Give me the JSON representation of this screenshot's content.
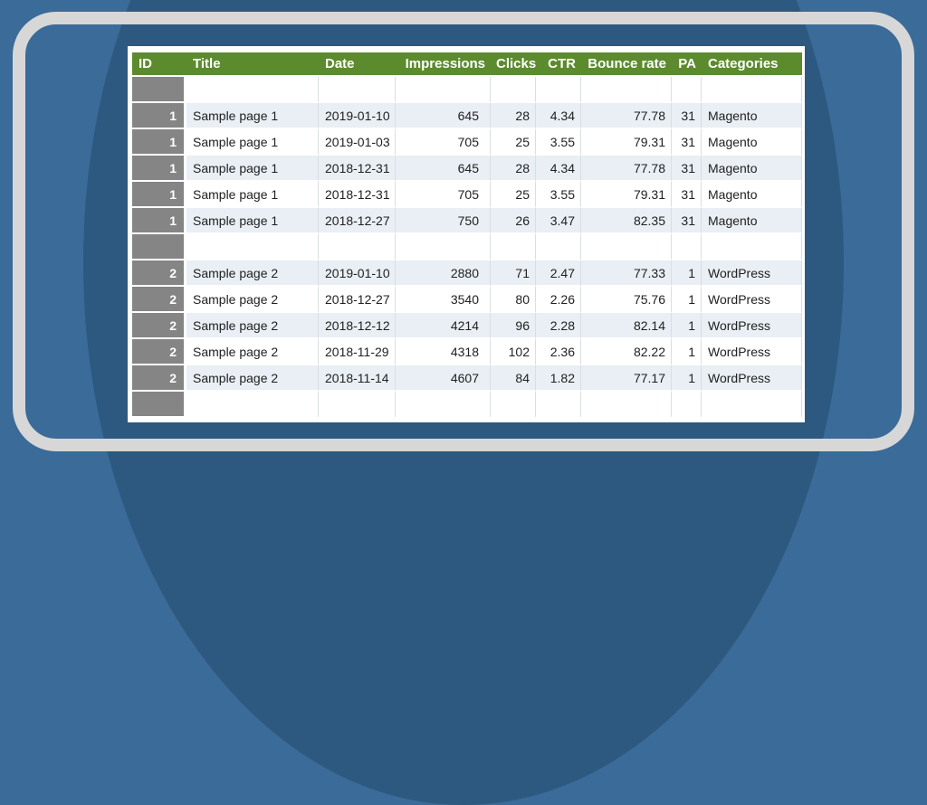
{
  "colors": {
    "background": "#3a6b99",
    "background_ellipse": "#2d5980",
    "frame_border": "#d7d7d7",
    "header_bg": "#5c8b2e",
    "header_text": "#ffffff",
    "id_cell_bg": "#858585",
    "id_cell_text": "#ffffff",
    "row_bg": "#ffffff",
    "row_alt_bg": "#e9eff4",
    "gridline": "#d9dee3",
    "body_text": "#212121"
  },
  "chart_data": {
    "type": "table",
    "columns": [
      {
        "key": "id",
        "label": "ID"
      },
      {
        "key": "title",
        "label": "Title"
      },
      {
        "key": "date",
        "label": "Date"
      },
      {
        "key": "impressions",
        "label": "Impressions"
      },
      {
        "key": "clicks",
        "label": "Clicks"
      },
      {
        "key": "ctr",
        "label": "CTR"
      },
      {
        "key": "bounce_rate",
        "label": "Bounce rate"
      },
      {
        "key": "pa",
        "label": "PA"
      },
      {
        "key": "categories",
        "label": "Categories"
      }
    ],
    "rows": [
      {
        "type": "spacer"
      },
      {
        "type": "data",
        "id": "1",
        "title": "Sample page 1",
        "date": "2019-01-10",
        "impressions": "645",
        "clicks": "28",
        "ctr": "4.34",
        "bounce_rate": "77.78",
        "pa": "31",
        "categories": "Magento"
      },
      {
        "type": "data",
        "id": "1",
        "title": "Sample page 1",
        "date": "2019-01-03",
        "impressions": "705",
        "clicks": "25",
        "ctr": "3.55",
        "bounce_rate": "79.31",
        "pa": "31",
        "categories": "Magento"
      },
      {
        "type": "data",
        "id": "1",
        "title": "Sample page 1",
        "date": "2018-12-31",
        "impressions": "645",
        "clicks": "28",
        "ctr": "4.34",
        "bounce_rate": "77.78",
        "pa": "31",
        "categories": "Magento"
      },
      {
        "type": "data",
        "id": "1",
        "title": "Sample page 1",
        "date": "2018-12-31",
        "impressions": "705",
        "clicks": "25",
        "ctr": "3.55",
        "bounce_rate": "79.31",
        "pa": "31",
        "categories": "Magento"
      },
      {
        "type": "data",
        "id": "1",
        "title": "Sample page 1",
        "date": "2018-12-27",
        "impressions": "750",
        "clicks": "26",
        "ctr": "3.47",
        "bounce_rate": "82.35",
        "pa": "31",
        "categories": "Magento"
      },
      {
        "type": "spacer"
      },
      {
        "type": "data",
        "id": "2",
        "title": "Sample page 2",
        "date": "2019-01-10",
        "impressions": "2880",
        "clicks": "71",
        "ctr": "2.47",
        "bounce_rate": "77.33",
        "pa": "1",
        "categories": "WordPress"
      },
      {
        "type": "data",
        "id": "2",
        "title": "Sample page 2",
        "date": "2018-12-27",
        "impressions": "3540",
        "clicks": "80",
        "ctr": "2.26",
        "bounce_rate": "75.76",
        "pa": "1",
        "categories": "WordPress"
      },
      {
        "type": "data",
        "id": "2",
        "title": "Sample page 2",
        "date": "2018-12-12",
        "impressions": "4214",
        "clicks": "96",
        "ctr": "2.28",
        "bounce_rate": "82.14",
        "pa": "1",
        "categories": "WordPress"
      },
      {
        "type": "data",
        "id": "2",
        "title": "Sample page 2",
        "date": "2018-11-29",
        "impressions": "4318",
        "clicks": "102",
        "ctr": "2.36",
        "bounce_rate": "82.22",
        "pa": "1",
        "categories": "WordPress"
      },
      {
        "type": "data",
        "id": "2",
        "title": "Sample page 2",
        "date": "2018-11-14",
        "impressions": "4607",
        "clicks": "84",
        "ctr": "1.82",
        "bounce_rate": "77.17",
        "pa": "1",
        "categories": "WordPress"
      },
      {
        "type": "spacer"
      }
    ]
  }
}
